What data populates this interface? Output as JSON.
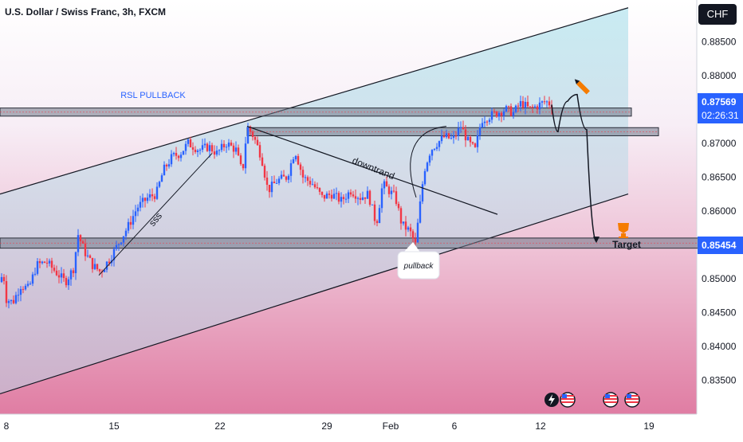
{
  "header": {
    "title": "U.S. Dollar / Swiss Franc, 3h, FXCM",
    "currency": "CHF"
  },
  "price_axis": {
    "ticks": [
      "0.88500",
      "0.88000",
      "0.87500",
      "0.87000",
      "0.86500",
      "0.86000",
      "0.85500",
      "0.85000",
      "0.84500",
      "0.84000",
      "0.83500"
    ],
    "current_price": "0.87569",
    "countdown": "02:26:31",
    "target_price": "0.85454",
    "colors": {
      "current": "#2962ff",
      "target": "#2962ff"
    }
  },
  "time_axis": {
    "ticks": [
      "8",
      "15",
      "22",
      "29",
      "Feb",
      "6",
      "12",
      "19"
    ]
  },
  "annotations": {
    "rsl_label": "RSL PULLBACK",
    "downtrend_label": "downtrand",
    "sss_label": "sss",
    "pullback_label": "pullback",
    "target_label": "Target"
  },
  "chart_data": {
    "type": "candlestick",
    "title": "U.S. Dollar / Swiss Franc, 3h, FXCM",
    "ylim": [
      0.83,
      0.8895
    ],
    "yticks": [
      0.885,
      0.88,
      0.875,
      0.87,
      0.865,
      0.86,
      0.855,
      0.85,
      0.845,
      0.84,
      0.835
    ],
    "xticks": [
      "8",
      "15",
      "22",
      "29",
      "Feb",
      "6",
      "12",
      "19"
    ],
    "path": [
      [
        0,
        0.8495
      ],
      [
        4,
        0.851
      ],
      [
        8,
        0.847
      ],
      [
        16,
        0.8465
      ],
      [
        26,
        0.849
      ],
      [
        36,
        0.8485
      ],
      [
        46,
        0.852
      ],
      [
        58,
        0.8525
      ],
      [
        70,
        0.851
      ],
      [
        82,
        0.8495
      ],
      [
        92,
        0.8515
      ],
      [
        98,
        0.8565
      ],
      [
        106,
        0.854
      ],
      [
        116,
        0.852
      ],
      [
        126,
        0.851
      ],
      [
        138,
        0.853
      ],
      [
        150,
        0.8555
      ],
      [
        162,
        0.858
      ],
      [
        172,
        0.8605
      ],
      [
        186,
        0.862
      ],
      [
        196,
        0.8625
      ],
      [
        205,
        0.866
      ],
      [
        216,
        0.868
      ],
      [
        226,
        0.8685
      ],
      [
        236,
        0.87
      ],
      [
        250,
        0.869
      ],
      [
        262,
        0.8695
      ],
      [
        272,
        0.8685
      ],
      [
        284,
        0.87
      ],
      [
        296,
        0.869
      ],
      [
        304,
        0.8655
      ],
      [
        310,
        0.8725
      ],
      [
        318,
        0.871
      ],
      [
        328,
        0.868
      ],
      [
        336,
        0.863
      ],
      [
        348,
        0.8645
      ],
      [
        360,
        0.865
      ],
      [
        370,
        0.869
      ],
      [
        380,
        0.865
      ],
      [
        392,
        0.864
      ],
      [
        404,
        0.862
      ],
      [
        416,
        0.8625
      ],
      [
        428,
        0.8615
      ],
      [
        440,
        0.863
      ],
      [
        452,
        0.862
      ],
      [
        462,
        0.8625
      ],
      [
        472,
        0.858
      ],
      [
        480,
        0.864
      ],
      [
        488,
        0.863
      ],
      [
        496,
        0.862
      ],
      [
        504,
        0.858
      ],
      [
        514,
        0.857
      ],
      [
        521,
        0.855
      ],
      [
        526,
        0.86
      ],
      [
        532,
        0.866
      ],
      [
        540,
        0.869
      ],
      [
        548,
        0.87
      ],
      [
        558,
        0.871
      ],
      [
        568,
        0.8705
      ],
      [
        578,
        0.8725
      ],
      [
        588,
        0.87
      ],
      [
        596,
        0.869
      ],
      [
        604,
        0.8735
      ],
      [
        614,
        0.874
      ],
      [
        624,
        0.8745
      ],
      [
        634,
        0.875
      ],
      [
        644,
        0.8745
      ],
      [
        654,
        0.876
      ],
      [
        664,
        0.875
      ],
      [
        674,
        0.8755
      ],
      [
        684,
        0.8762
      ],
      [
        692,
        0.8757
      ]
    ],
    "channel": {
      "upper": [
        [
          0,
          0.8625
        ],
        [
          788,
          0.89
        ]
      ],
      "lower": [
        [
          0,
          0.833
        ],
        [
          788,
          0.8625
        ]
      ]
    },
    "zones": [
      {
        "name": "rsl",
        "x": [
          0,
          792
        ],
        "y": [
          0.874,
          0.8752
        ]
      },
      {
        "name": "mid",
        "x": [
          310,
          826
        ],
        "y": [
          0.8711,
          0.8723
        ]
      },
      {
        "name": "low",
        "x": [
          0,
          932
        ],
        "y": [
          0.8545,
          0.856
        ]
      }
    ],
    "downtrend_line": [
      [
        310,
        0.8725
      ],
      [
        624,
        0.8595
      ]
    ],
    "sss_line": [
      [
        124,
        0.8505
      ],
      [
        266,
        0.8685
      ]
    ],
    "projection": [
      [
        692,
        0.8757
      ],
      [
        700,
        0.8717
      ],
      [
        712,
        0.8762
      ],
      [
        724,
        0.8772
      ],
      [
        736,
        0.872
      ],
      [
        748,
        0.8555
      ]
    ],
    "colors": {
      "up": "#2962ff",
      "down": "#f23645",
      "zone": "#707686",
      "channel": "#131722"
    }
  }
}
